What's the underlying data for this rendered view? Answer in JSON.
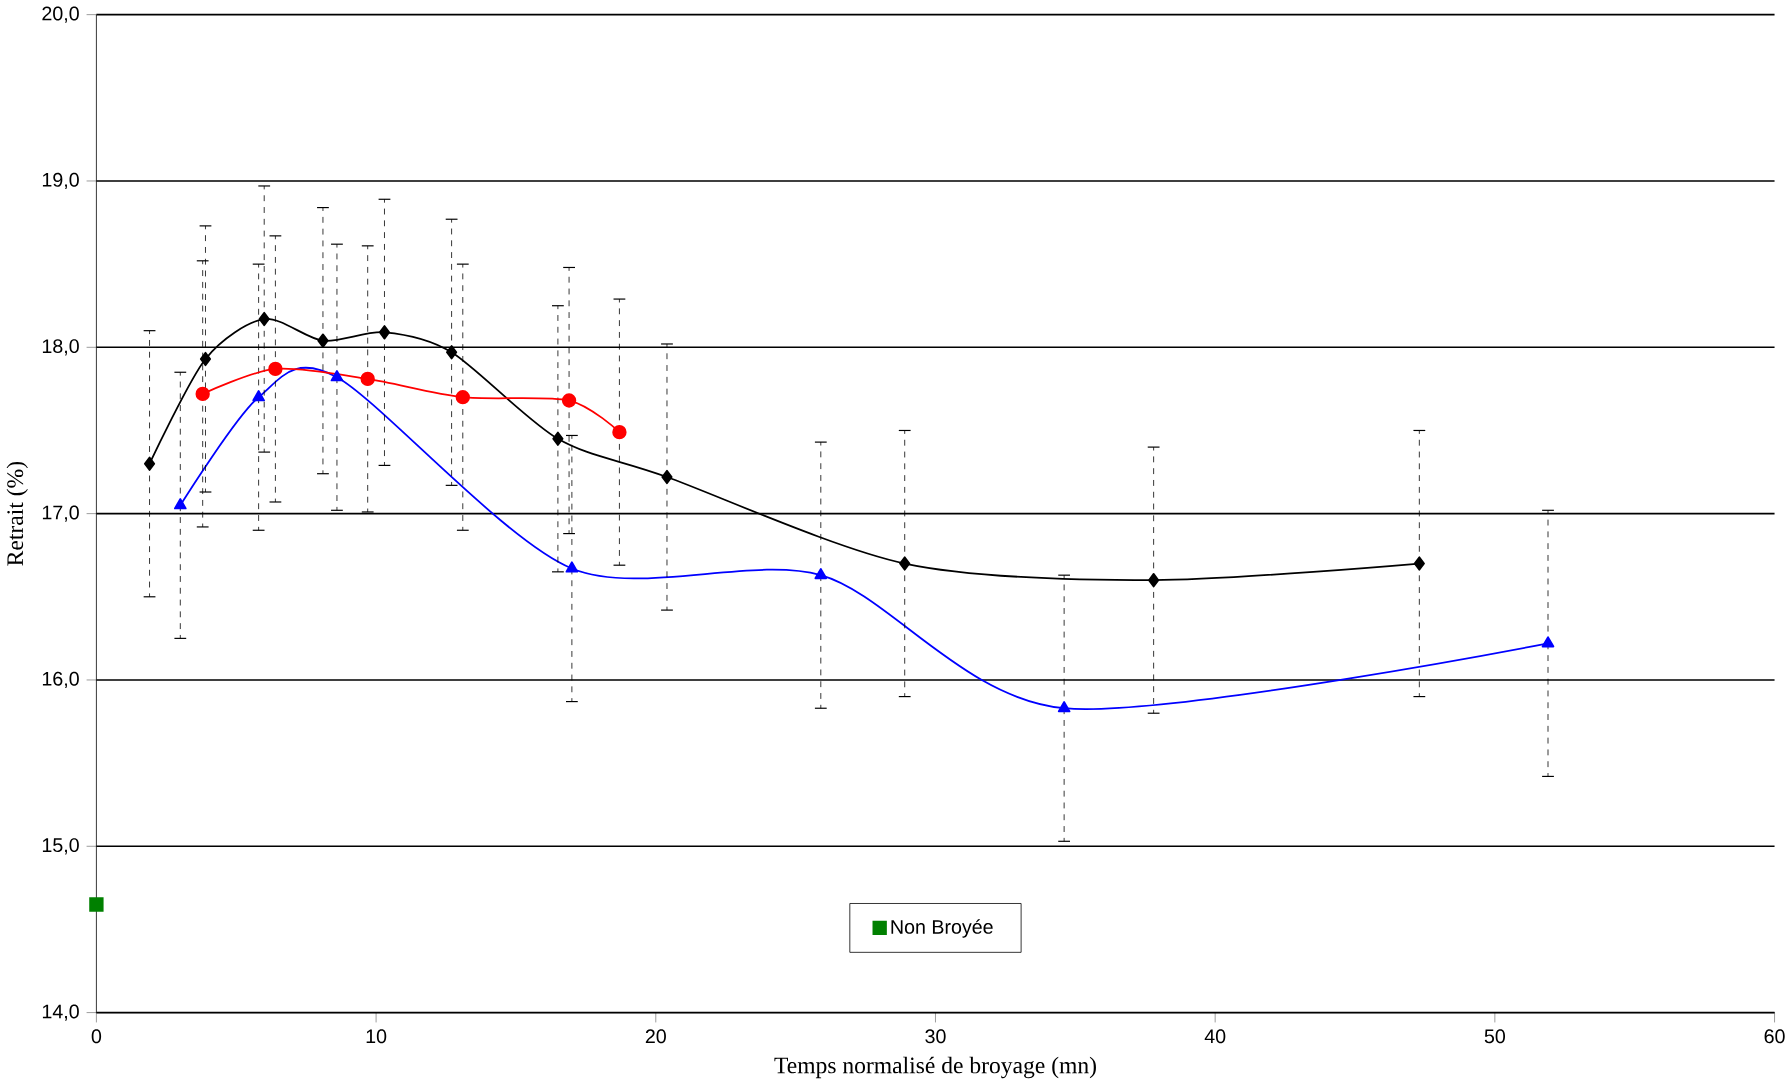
{
  "chart_data": {
    "type": "line",
    "xlabel": "Temps normalisé de broyage (mn)",
    "ylabel": "Retrait (%)",
    "xlim": [
      0,
      60
    ],
    "xticks": [
      0,
      10,
      20,
      30,
      40,
      50,
      60
    ],
    "ylim": [
      14,
      20
    ],
    "yticks": [
      {
        "value": 14,
        "label": "14,0"
      },
      {
        "value": 15,
        "label": "15,0"
      },
      {
        "value": 16,
        "label": "16,0"
      },
      {
        "value": 17,
        "label": "17,0"
      },
      {
        "value": 18,
        "label": "18,0"
      },
      {
        "value": 19,
        "label": "19,0"
      },
      {
        "value": 20,
        "label": "20,0"
      }
    ],
    "grid": "y",
    "legend": "bottom",
    "series": [
      {
        "color": "#0000ff",
        "marker": "triangle",
        "x": [
          3.0,
          5.8,
          8.6,
          17.0,
          25.9,
          34.6,
          51.9
        ],
        "values": [
          17.05,
          17.7,
          17.82,
          16.67,
          16.63,
          15.83,
          16.22
        ],
        "errors": [
          0.8,
          0.8,
          0.8,
          0.8,
          0.8,
          0.8,
          0.8
        ]
      },
      {
        "color": "#000000",
        "marker": "diamond",
        "x": [
          1.9,
          3.9,
          6.0,
          8.1,
          10.3,
          12.7,
          16.5,
          20.4,
          28.9,
          37.8,
          47.3
        ],
        "values": [
          17.3,
          17.93,
          18.17,
          18.04,
          18.09,
          17.97,
          17.45,
          17.22,
          16.7,
          16.6,
          16.7
        ],
        "errors": [
          0.8,
          0.8,
          0.8,
          0.8,
          0.8,
          0.8,
          0.8,
          0.8,
          0.8,
          0.8,
          0.8
        ]
      },
      {
        "color": "#ff0000",
        "marker": "circle",
        "x": [
          3.8,
          6.4,
          9.7,
          13.1,
          16.9,
          18.7
        ],
        "values": [
          17.72,
          17.87,
          17.81,
          17.7,
          17.68,
          17.49
        ],
        "errors": [
          0.8,
          0.8,
          0.8,
          0.8,
          0.8,
          0.8
        ]
      },
      {
        "name": "Non Broyée",
        "type": "scatter",
        "color": "#008000",
        "marker": "square",
        "x": [
          0
        ],
        "values": [
          14.65
        ]
      }
    ]
  }
}
